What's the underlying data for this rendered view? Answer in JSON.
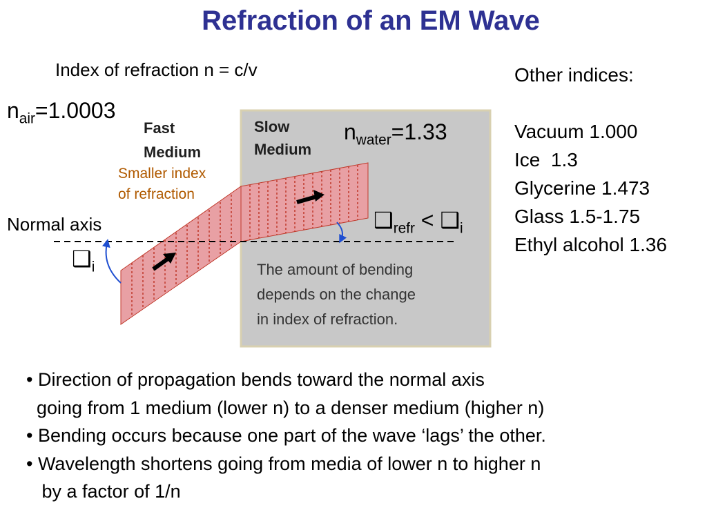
{
  "title": "Refraction of an EM Wave",
  "formula": "Index of refraction n = c/v",
  "n_air": {
    "symbol": "n",
    "sub": "air",
    "value": "=1.0003"
  },
  "n_water": {
    "symbol": "n",
    "sub": "water",
    "value": "=1.33"
  },
  "fast_medium": {
    "line1": "Fast",
    "line2": "Medium",
    "note1": "Smaller index",
    "note2": "of refraction"
  },
  "slow_medium": {
    "line1": "Slow",
    "line2": "Medium"
  },
  "normal_axis_label": "Normal axis",
  "theta_symbol": "❑",
  "theta_i_sub": "i",
  "theta_refr_sub": "refr",
  "less_than": "<",
  "bending_note": [
    "The amount of bending",
    "depends on the change",
    "in index of refraction."
  ],
  "other_indices": {
    "heading": "Other indices:",
    "items": [
      "Vacuum 1.000",
      "Ice  1.3",
      "Glycerine 1.473",
      "Glass 1.5-1.75",
      "Ethyl alcohol 1.36"
    ]
  },
  "bullets": [
    "• Direction of propagation bends toward the normal axis",
    "  going from 1 medium (lower n) to a denser medium (higher n)",
    "• Bending occurs because one part of the wave ‘lags’ the other.",
    "• Wavelength shortens going from media of lower n to higher n",
    "   by a factor of 1/n"
  ],
  "colors": {
    "title": "#2e3192",
    "slow_medium_bg": "#c8c8c8",
    "wave_fill": "#e8a0a4",
    "wave_stripe": "#c0392b",
    "angle_arc": "#1f4fd1",
    "note_text": "#b05a00"
  }
}
